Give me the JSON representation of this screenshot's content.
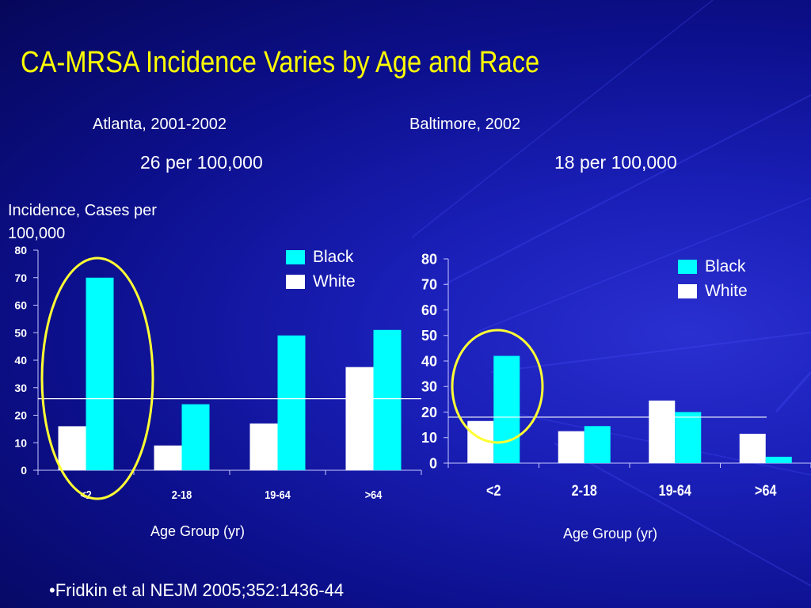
{
  "slide": {
    "title": "CA-MRSA Incidence Varies by Age and Race",
    "ylabel": "Incidence, Cases per 100,000",
    "footnote": "•Fridkin et al NEJM 2005;352:1436-44"
  },
  "colors": {
    "black": "#00ffff",
    "white": "#ffffff",
    "circle": "#ffff33",
    "title": "#ffff00"
  },
  "chart_data": [
    {
      "type": "bar",
      "subtitle": "Atlanta, 2001-2002",
      "rate": "26 per 100,000",
      "xlabel": "Age Group (yr)",
      "ylabel": "Incidence, Cases per 100,000",
      "categories": [
        "<2",
        "2-18",
        "19-64",
        ">64"
      ],
      "series": [
        {
          "name": "White",
          "values": [
            16,
            9,
            17,
            37.5
          ]
        },
        {
          "name": "Black",
          "values": [
            70,
            24,
            49,
            51
          ]
        }
      ],
      "ylim": [
        0,
        80
      ],
      "yticks": [
        0,
        10,
        20,
        30,
        40,
        50,
        60,
        70,
        80
      ],
      "reference_line": 26,
      "highlight": "<2",
      "legend": [
        "Black",
        "White"
      ],
      "legend_position": "top-right",
      "grid": false
    },
    {
      "type": "bar",
      "subtitle": "Baltimore, 2002",
      "rate": "18 per 100,000",
      "xlabel": "Age Group (yr)",
      "categories": [
        "<2",
        "2-18",
        "19-64",
        ">64"
      ],
      "series": [
        {
          "name": "White",
          "values": [
            16.5,
            12.5,
            24.5,
            11.5
          ]
        },
        {
          "name": "Black",
          "values": [
            42,
            14.5,
            20,
            2.5
          ]
        }
      ],
      "ylim": [
        0,
        80
      ],
      "yticks": [
        0,
        10,
        20,
        30,
        40,
        50,
        60,
        70,
        80
      ],
      "reference_line": 18,
      "highlight": "<2",
      "legend": [
        "Black",
        "White"
      ],
      "legend_position": "top-right",
      "grid": false
    }
  ]
}
